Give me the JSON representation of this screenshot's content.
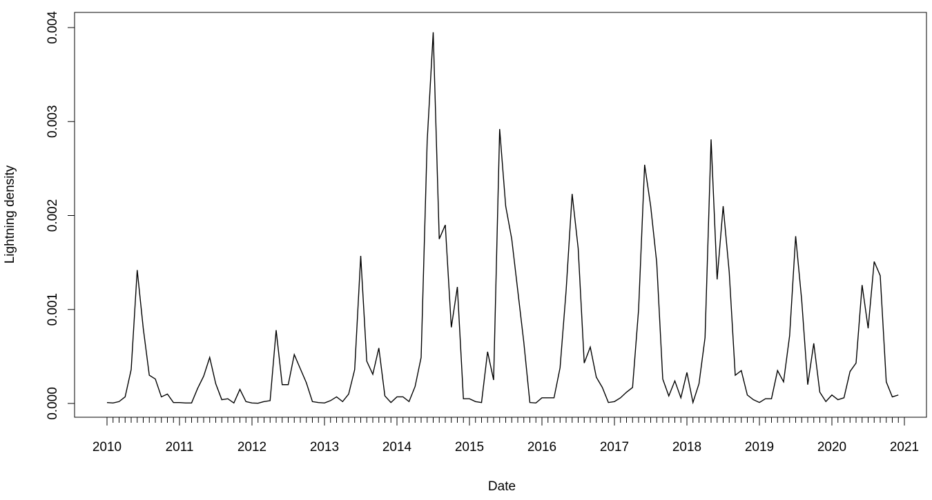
{
  "chart_data": {
    "type": "line",
    "title": "",
    "xlabel": "Date",
    "ylabel": "Lightning density",
    "ylim": [
      0,
      0.004
    ],
    "xlim": [
      "2010-01",
      "2021-01"
    ],
    "grid": false,
    "line_color": "#000000",
    "x_tick_labels": [
      "2010",
      "2011",
      "2012",
      "2013",
      "2014",
      "2015",
      "2016",
      "2017",
      "2018",
      "2019",
      "2020",
      "2021"
    ],
    "y_tick_labels": [
      "0.000",
      "0.001",
      "0.002",
      "0.003",
      "0.004"
    ],
    "y_ticks": [
      0,
      0.001,
      0.002,
      0.003,
      0.004
    ],
    "start": "2010-01",
    "frequency": "monthly",
    "values": [
      1e-05,
      5e-06,
      2e-05,
      7e-05,
      0.00036,
      0.00142,
      0.0008,
      0.0003,
      0.00026,
      7e-05,
      0.0001,
      1e-05,
      1e-05,
      5e-06,
      5e-06,
      0.00016,
      0.00029,
      0.00049,
      0.00021,
      4e-05,
      5e-05,
      5e-06,
      0.00015,
      2e-05,
      5e-06,
      2e-06,
      2e-05,
      3e-05,
      0.00078,
      0.0002,
      0.0002,
      0.00052,
      0.00037,
      0.00022,
      2e-05,
      1e-05,
      5e-06,
      3e-05,
      7e-05,
      2e-05,
      0.0001,
      0.00036,
      0.00157,
      0.00045,
      0.00031,
      0.00059,
      8e-05,
      1e-05,
      7e-05,
      7e-05,
      2e-05,
      0.00018,
      0.00049,
      0.00279,
      0.00395,
      0.00175,
      0.0019,
      0.00081,
      0.00124,
      5e-05,
      5e-05,
      2e-05,
      1e-05,
      0.00055,
      0.00025,
      0.00292,
      0.0021,
      0.00175,
      0.0012,
      0.00065,
      1e-05,
      5e-06,
      6e-05,
      6e-05,
      6e-05,
      0.00038,
      0.0012,
      0.00223,
      0.00165,
      0.00043,
      0.0006,
      0.00028,
      0.00017,
      1e-05,
      2e-05,
      6e-05,
      0.00012,
      0.00017,
      0.001,
      0.00254,
      0.0021,
      0.0015,
      0.00026,
      8e-05,
      0.00024,
      6e-05,
      0.00033,
      1e-05,
      0.00021,
      0.0007,
      0.00281,
      0.00132,
      0.0021,
      0.0014,
      0.0003,
      0.00035,
      9e-05,
      4e-05,
      1e-05,
      5e-05,
      5e-05,
      0.00035,
      0.00023,
      0.00072,
      0.00178,
      0.0011,
      0.0002,
      0.00064,
      0.00012,
      2e-05,
      9e-05,
      4e-05,
      6e-05,
      0.00034,
      0.00043,
      0.00126,
      0.0008,
      0.00151,
      0.00136,
      0.00023,
      7e-05,
      9e-05
    ]
  }
}
